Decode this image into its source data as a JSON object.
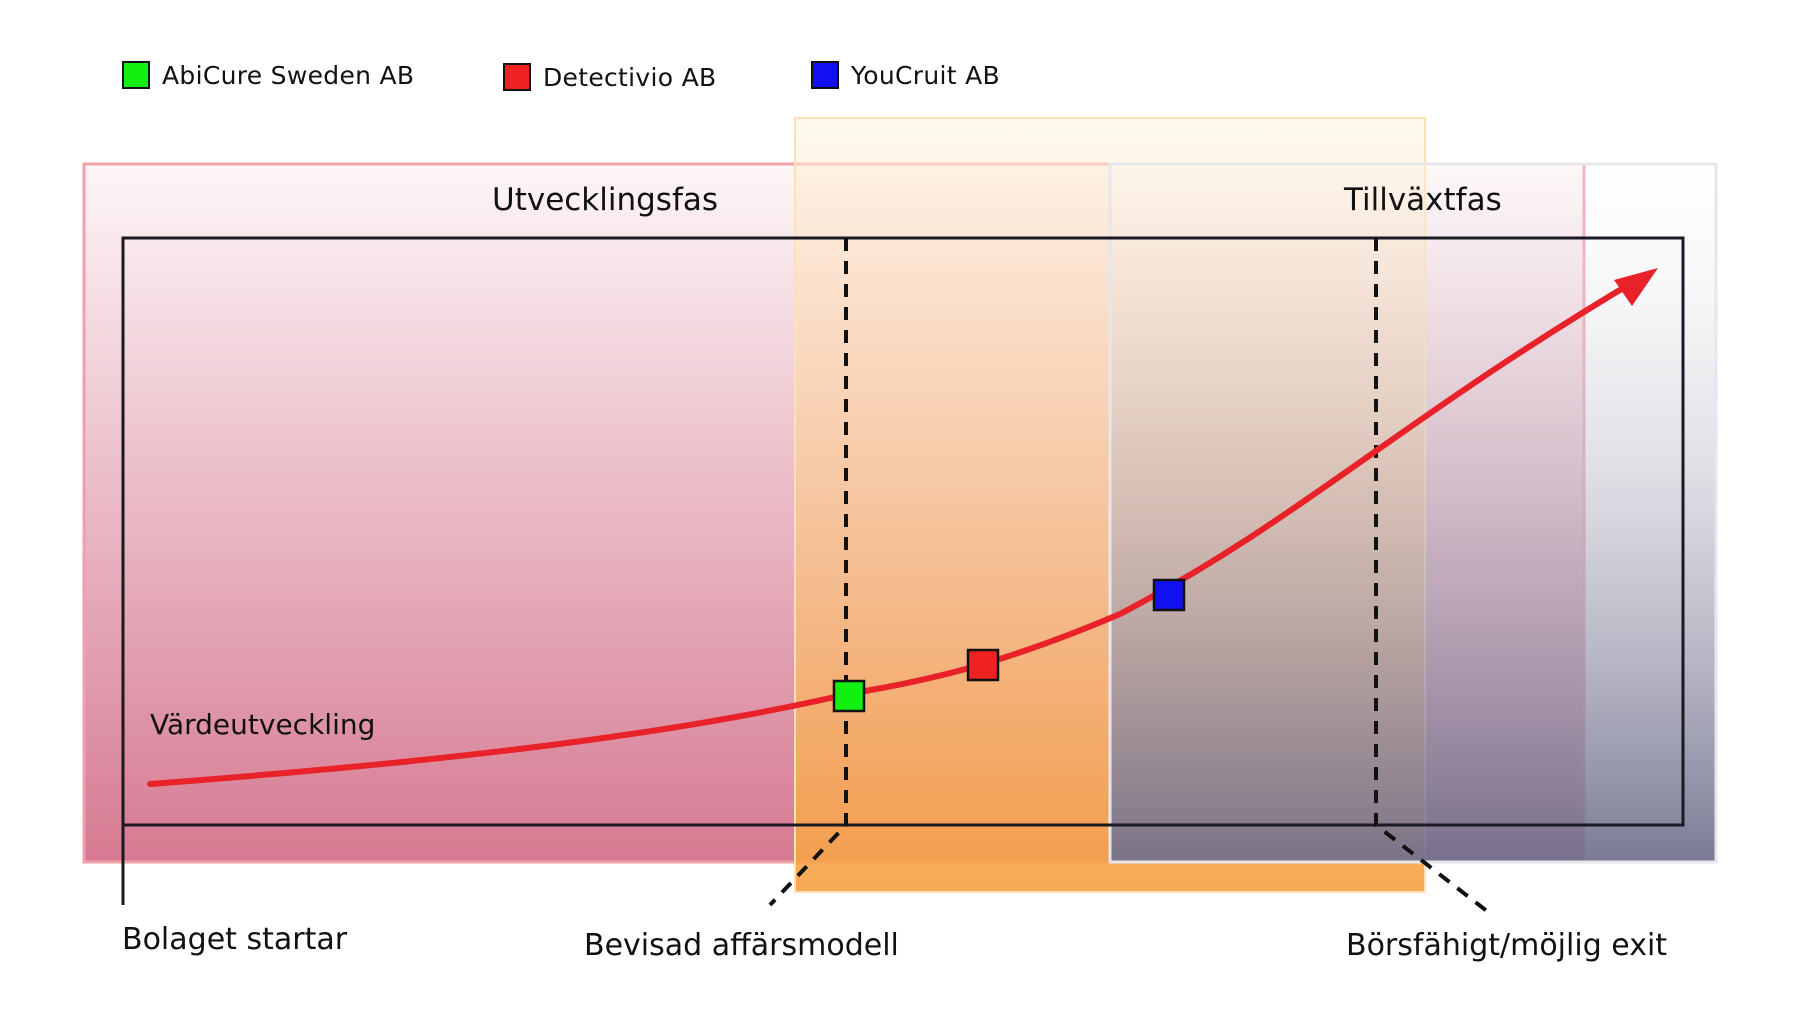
{
  "legend": [
    {
      "label": "AbiCure Sweden AB",
      "color": "#12f012"
    },
    {
      "label": "Detectivio AB",
      "color": "#ee2222"
    },
    {
      "label": "YouCruit AB",
      "color": "#1010f0"
    }
  ],
  "phases": {
    "development": "Utvecklingsfas",
    "growth": "Tillväxtfas"
  },
  "curve_label": "Värdeutveckling",
  "milestones": {
    "start": "Bolaget startar",
    "proven": "Bevisad affärsmodell",
    "exit": "Börsfähigt/möjlig exit"
  },
  "colors": {
    "curve": "#e82228",
    "development_zone": "#d7728a",
    "transition_zone": "#f5b155",
    "growth_zone": "#7b7b96"
  }
}
